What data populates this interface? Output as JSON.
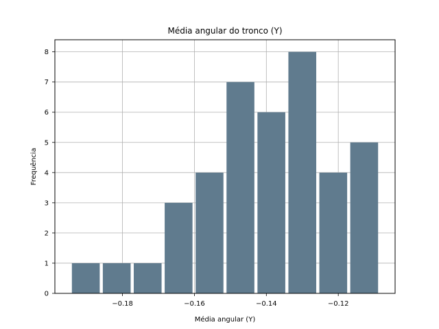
{
  "chart_data": {
    "type": "bar",
    "title": "Média angular do tronco (Y)",
    "xlabel": "Média angular (Y)",
    "ylabel": "Frequência",
    "bins": [
      {
        "x0": -0.1945,
        "x1": -0.1859,
        "count": 1
      },
      {
        "x0": -0.1859,
        "x1": -0.1773,
        "count": 1
      },
      {
        "x0": -0.1773,
        "x1": -0.1687,
        "count": 1
      },
      {
        "x0": -0.1687,
        "x1": -0.1601,
        "count": 3
      },
      {
        "x0": -0.1601,
        "x1": -0.1515,
        "count": 4
      },
      {
        "x0": -0.1515,
        "x1": -0.1429,
        "count": 7
      },
      {
        "x0": -0.1429,
        "x1": -0.1343,
        "count": 6
      },
      {
        "x0": -0.1343,
        "x1": -0.1257,
        "count": 8
      },
      {
        "x0": -0.1257,
        "x1": -0.1171,
        "count": 4
      },
      {
        "x0": -0.1171,
        "x1": -0.1085,
        "count": 5
      }
    ],
    "xlim": [
      -0.1988,
      -0.1042
    ],
    "ylim": [
      0,
      8.4
    ],
    "xticks": [
      -0.18,
      -0.16,
      -0.14,
      -0.12
    ],
    "xtick_labels": [
      "−0.18",
      "−0.16",
      "−0.14",
      "−0.12"
    ],
    "yticks": [
      0,
      1,
      2,
      3,
      4,
      5,
      6,
      7,
      8
    ],
    "grid": true,
    "bar_color": "#607B8E"
  }
}
